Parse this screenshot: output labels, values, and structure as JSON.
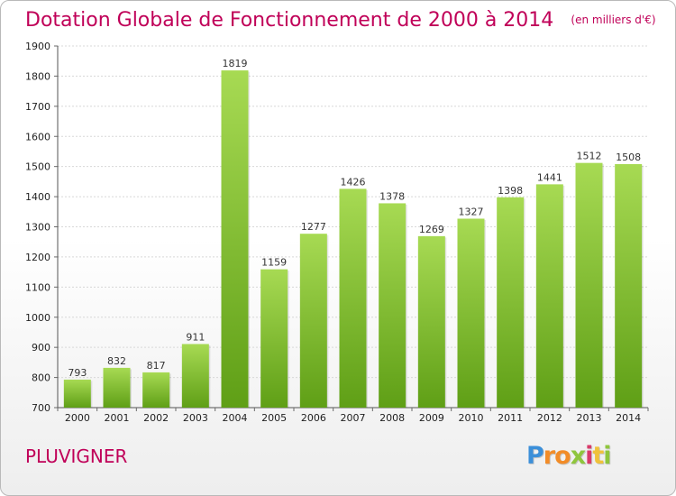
{
  "title": "Dotation Globale de Fonctionnement de 2000 à 2014",
  "unit_note": "(en milliers d'€)",
  "city": "PLUVIGNER",
  "logo": {
    "letters": [
      "P",
      "r",
      "o",
      "x",
      "i",
      "t",
      "i"
    ]
  },
  "colors": {
    "title": "#c00058",
    "bar_light": "#a7da53",
    "bar_dark": "#5f9f16",
    "logo_blue": "#3b8fd9",
    "logo_orange": "#f28c28",
    "logo_green": "#8fc63d",
    "logo_pink": "#d93a6a",
    "logo_yellow": "#f0c23b"
  },
  "chart_data": {
    "type": "bar",
    "categories": [
      "2000",
      "2001",
      "2002",
      "2003",
      "2004",
      "2005",
      "2006",
      "2007",
      "2008",
      "2009",
      "2010",
      "2011",
      "2012",
      "2013",
      "2014"
    ],
    "values": [
      793,
      832,
      817,
      911,
      1819,
      1159,
      1277,
      1426,
      1378,
      1269,
      1327,
      1398,
      1441,
      1512,
      1508
    ],
    "data_labels": [
      "793",
      "832",
      "817",
      "911",
      "1819",
      "1159",
      "1277",
      "1426",
      "1378",
      "1269",
      "1327",
      "1398",
      "1441",
      "1512",
      "1508"
    ],
    "ylim": [
      700,
      1900
    ],
    "yticks": [
      700,
      800,
      900,
      1000,
      1100,
      1200,
      1300,
      1400,
      1500,
      1600,
      1700,
      1800,
      1900
    ],
    "grid": true,
    "xlabel": "",
    "ylabel": ""
  }
}
